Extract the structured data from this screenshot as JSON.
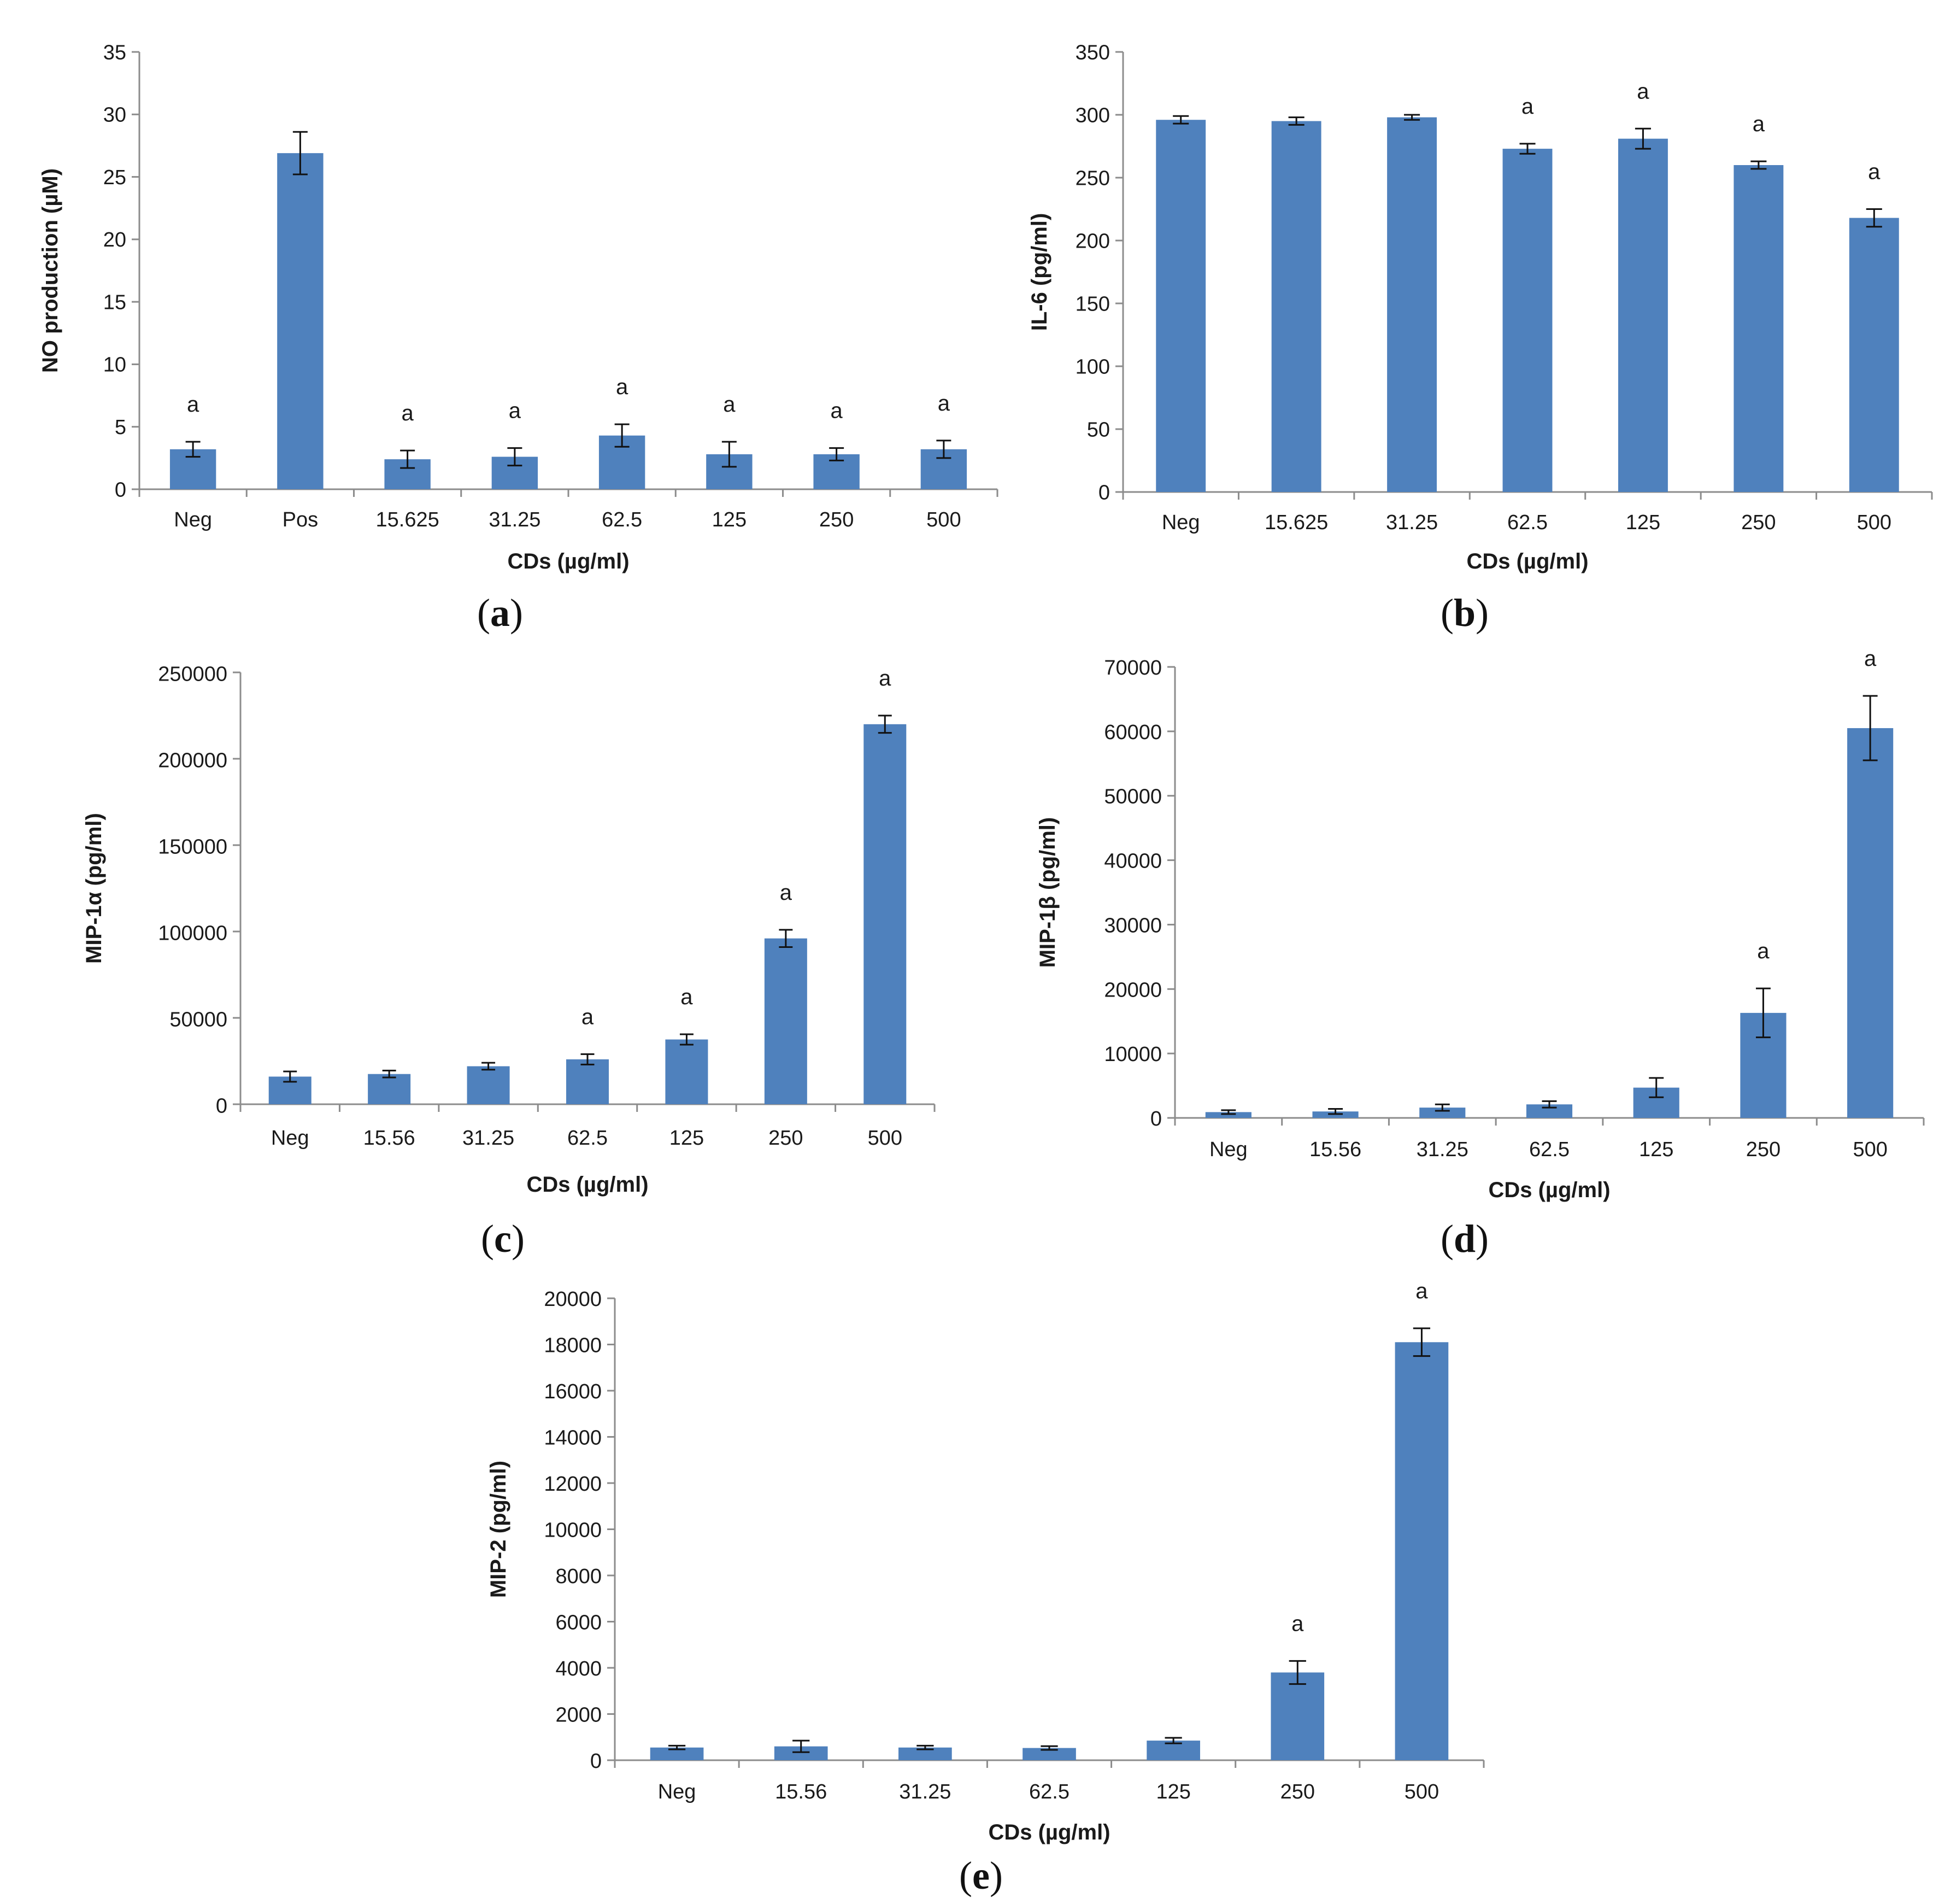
{
  "figure": {
    "bar_color": "#4f81bd",
    "axis_color": "#8c8c8c",
    "text_color": "#1a1a1a"
  },
  "chart_data": [
    {
      "panel": "a",
      "type": "bar",
      "ylabel": "NO production (µM)",
      "xlabel": "CDs (µg/ml)",
      "ylim": [
        0,
        35
      ],
      "yticks": [
        0,
        5,
        10,
        15,
        20,
        25,
        30,
        35
      ],
      "categories": [
        "Neg",
        "Pos",
        "15.625",
        "31.25",
        "62.5",
        "125",
        "250",
        "500"
      ],
      "values": [
        3.2,
        26.9,
        2.4,
        2.6,
        4.3,
        2.8,
        2.8,
        3.2
      ],
      "errors": [
        0.6,
        1.7,
        0.7,
        0.7,
        0.9,
        1.0,
        0.5,
        0.7
      ],
      "significance": [
        "a",
        "",
        "a",
        "a",
        "a",
        "a",
        "a",
        "a"
      ]
    },
    {
      "panel": "b",
      "type": "bar",
      "ylabel": "IL-6 (pg/ml)",
      "xlabel": "CDs (µg/ml)",
      "ylim": [
        0,
        350
      ],
      "yticks": [
        0,
        50,
        100,
        150,
        200,
        250,
        300,
        350
      ],
      "categories": [
        "Neg",
        "15.625",
        "31.25",
        "62.5",
        "125",
        "250",
        "500"
      ],
      "values": [
        296,
        295,
        298,
        273,
        281,
        260,
        218
      ],
      "errors": [
        3,
        3,
        2,
        4,
        8,
        3,
        7
      ],
      "significance": [
        "",
        "",
        "",
        "a",
        "a",
        "a",
        "a"
      ]
    },
    {
      "panel": "c",
      "type": "bar",
      "ylabel": "MIP-1α (pg/ml)",
      "xlabel": "CDs (µg/ml)",
      "ylim": [
        0,
        250000
      ],
      "yticks": [
        0,
        50000,
        100000,
        150000,
        200000,
        250000
      ],
      "categories": [
        "Neg",
        "15.56",
        "31.25",
        "62.5",
        "125",
        "250",
        "500"
      ],
      "values": [
        16000,
        17500,
        22000,
        26000,
        37500,
        96000,
        220000
      ],
      "errors": [
        3000,
        2000,
        2000,
        3000,
        3000,
        5000,
        5000
      ],
      "significance": [
        "",
        "",
        "",
        "a",
        "a",
        "a",
        "a"
      ]
    },
    {
      "panel": "d",
      "type": "bar",
      "ylabel": "MIP-1β (pg/ml)",
      "xlabel": "CDs (µg/ml)",
      "ylim": [
        0,
        70000
      ],
      "yticks": [
        0,
        10000,
        20000,
        30000,
        40000,
        50000,
        60000,
        70000
      ],
      "categories": [
        "Neg",
        "15.56",
        "31.25",
        "62.5",
        "125",
        "250",
        "500"
      ],
      "values": [
        900,
        1000,
        1600,
        2100,
        4700,
        16300,
        60500
      ],
      "errors": [
        300,
        400,
        500,
        500,
        1500,
        3800,
        5000
      ],
      "significance": [
        "",
        "",
        "",
        "",
        "",
        "a",
        "a"
      ]
    },
    {
      "panel": "e",
      "type": "bar",
      "ylabel": "MIP-2 (pg/ml)",
      "xlabel": "CDs (µg/ml)",
      "ylim": [
        0,
        20000
      ],
      "yticks": [
        0,
        2000,
        4000,
        6000,
        8000,
        10000,
        12000,
        14000,
        16000,
        18000,
        20000
      ],
      "categories": [
        "Neg",
        "15.56",
        "31.25",
        "62.5",
        "125",
        "250",
        "500"
      ],
      "values": [
        550,
        600,
        550,
        530,
        850,
        3800,
        18100
      ],
      "errors": [
        80,
        250,
        80,
        80,
        120,
        500,
        600
      ],
      "significance": [
        "",
        "",
        "",
        "",
        "",
        "a",
        "a"
      ]
    }
  ],
  "panel_labels": {
    "a": {
      "open": "(",
      "letter": "a",
      "close": ")"
    },
    "b": {
      "open": "(",
      "letter": "b",
      "close": ")"
    },
    "c": {
      "open": "(",
      "letter": "c",
      "close": ")"
    },
    "d": {
      "open": "(",
      "letter": "d",
      "close": ")"
    },
    "e": {
      "open": "(",
      "letter": "e",
      "close": ")"
    }
  }
}
